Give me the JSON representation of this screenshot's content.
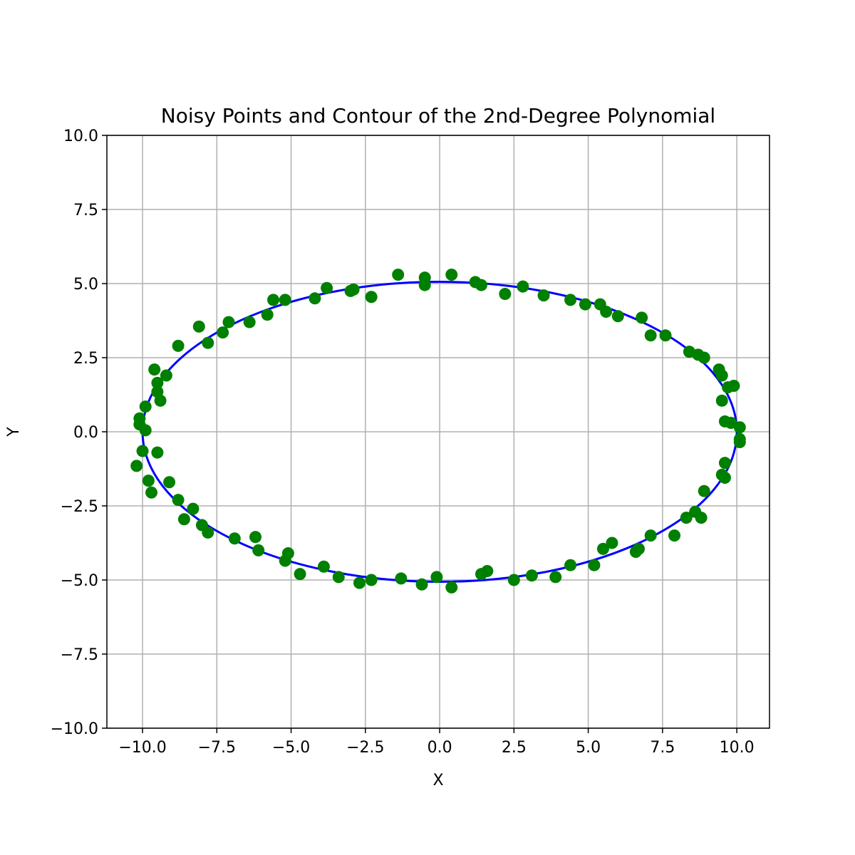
{
  "chart_data": {
    "type": "scatter",
    "title": "Noisy Points and Contour of the 2nd-Degree Polynomial",
    "xlabel": "X",
    "ylabel": "Y",
    "xlim": [
      -11.2,
      11.1
    ],
    "ylim": [
      -10,
      10
    ],
    "xticks": [
      "−10.0",
      "−7.5",
      "−5.0",
      "−2.5",
      "0.0",
      "2.5",
      "5.0",
      "7.5",
      "10.0"
    ],
    "xtick_values": [
      -10,
      -7.5,
      -5,
      -2.5,
      0,
      2.5,
      5,
      7.5,
      10
    ],
    "yticks": [
      "10.0",
      "7.5",
      "5.0",
      "2.5",
      "0.0",
      "−2.5",
      "−5.0",
      "−7.5",
      "−10.0"
    ],
    "ytick_values": [
      10,
      7.5,
      5,
      2.5,
      0,
      -2.5,
      -5,
      -7.5,
      -10
    ],
    "grid": true,
    "colors": {
      "points": "#008000",
      "contour": "#0000ff",
      "grid": "#b0b0b0"
    },
    "contour": {
      "shape": "ellipse",
      "center": [
        0,
        0
      ],
      "semi_axis_x": 10.0,
      "semi_axis_y": 5.06
    },
    "points": [
      [
        -10.1,
        0.45
      ],
      [
        -10.1,
        0.25
      ],
      [
        -9.9,
        0.05
      ],
      [
        -9.9,
        0.85
      ],
      [
        -10.0,
        -0.65
      ],
      [
        -10.2,
        -1.15
      ],
      [
        -9.8,
        -1.65
      ],
      [
        -9.7,
        -2.05
      ],
      [
        -9.5,
        -0.7
      ],
      [
        -9.4,
        1.05
      ],
      [
        -9.5,
        1.35
      ],
      [
        -9.5,
        1.65
      ],
      [
        -9.6,
        2.1
      ],
      [
        -9.2,
        1.9
      ],
      [
        -9.1,
        -1.7
      ],
      [
        -8.8,
        -2.3
      ],
      [
        -8.6,
        -2.95
      ],
      [
        -8.3,
        -2.6
      ],
      [
        -8.0,
        -3.15
      ],
      [
        -7.8,
        -3.4
      ],
      [
        -8.8,
        2.9
      ],
      [
        -8.1,
        3.55
      ],
      [
        -7.8,
        3.0
      ],
      [
        -7.3,
        3.35
      ],
      [
        -7.1,
        3.7
      ],
      [
        -6.9,
        -3.6
      ],
      [
        -6.4,
        3.7
      ],
      [
        -6.2,
        -3.55
      ],
      [
        -6.1,
        -4.0
      ],
      [
        -5.8,
        3.95
      ],
      [
        -5.6,
        4.45
      ],
      [
        -5.2,
        4.45
      ],
      [
        -5.2,
        -4.35
      ],
      [
        -5.1,
        -4.1
      ],
      [
        -4.7,
        -4.8
      ],
      [
        -4.2,
        4.5
      ],
      [
        -3.8,
        4.85
      ],
      [
        -3.9,
        -4.55
      ],
      [
        -3.4,
        -4.9
      ],
      [
        -3.0,
        4.75
      ],
      [
        -2.9,
        4.8
      ],
      [
        -2.7,
        -5.1
      ],
      [
        -2.3,
        4.55
      ],
      [
        -2.3,
        -5.0
      ],
      [
        -1.4,
        5.3
      ],
      [
        -1.3,
        -4.95
      ],
      [
        -0.5,
        5.2
      ],
      [
        -0.5,
        4.95
      ],
      [
        -0.6,
        -5.15
      ],
      [
        -0.1,
        -4.9
      ],
      [
        0.4,
        5.3
      ],
      [
        0.4,
        -5.25
      ],
      [
        1.2,
        5.05
      ],
      [
        1.4,
        4.95
      ],
      [
        1.4,
        -4.8
      ],
      [
        1.6,
        -4.7
      ],
      [
        2.2,
        4.65
      ],
      [
        2.5,
        -5.0
      ],
      [
        2.8,
        4.9
      ],
      [
        3.1,
        -4.85
      ],
      [
        3.5,
        4.6
      ],
      [
        3.9,
        -4.9
      ],
      [
        4.4,
        4.45
      ],
      [
        4.4,
        -4.5
      ],
      [
        4.9,
        4.3
      ],
      [
        5.2,
        -4.5
      ],
      [
        5.4,
        4.3
      ],
      [
        5.5,
        -3.95
      ],
      [
        5.6,
        4.05
      ],
      [
        5.8,
        -3.75
      ],
      [
        6.0,
        3.9
      ],
      [
        6.6,
        -4.05
      ],
      [
        6.7,
        -3.95
      ],
      [
        6.8,
        3.85
      ],
      [
        7.1,
        3.25
      ],
      [
        7.1,
        -3.5
      ],
      [
        7.6,
        3.25
      ],
      [
        7.9,
        -3.5
      ],
      [
        8.3,
        -2.9
      ],
      [
        8.4,
        2.7
      ],
      [
        8.6,
        -2.7
      ],
      [
        8.7,
        2.6
      ],
      [
        8.9,
        2.5
      ],
      [
        8.8,
        -2.9
      ],
      [
        8.9,
        -2.0
      ],
      [
        9.4,
        2.1
      ],
      [
        9.5,
        1.9
      ],
      [
        9.5,
        1.05
      ],
      [
        9.7,
        1.5
      ],
      [
        9.9,
        1.55
      ],
      [
        9.6,
        0.35
      ],
      [
        9.8,
        0.3
      ],
      [
        10.1,
        0.15
      ],
      [
        10.1,
        -0.25
      ],
      [
        10.1,
        -0.35
      ],
      [
        9.6,
        -1.05
      ],
      [
        9.5,
        -1.45
      ],
      [
        9.6,
        -1.55
      ]
    ]
  }
}
